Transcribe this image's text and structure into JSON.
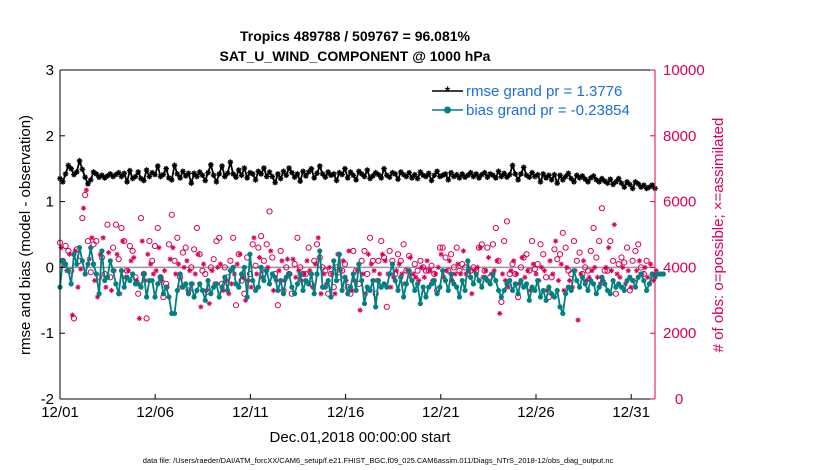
{
  "chart_data": {
    "type": "line",
    "title": "Tropics 489788 / 509767 = 96.081%",
    "subtitle": "SAT_U_WIND_COMPONENT @ 1000 hPa",
    "xlabel": "Dec.01,2018 00:00:00 start",
    "ylabel": "rmse and bias (model - observation)",
    "y2label": "# of obs: o=possible; ×=assimilated",
    "footer": "data file: /Users/raeder/DAI/ATM_forcXX/CAM6_setup/f.e21.FHIST_BGC.f09_025.CAM6assim.011/Diags_NTrS_2018-12/obs_diag_output.nc",
    "x_tick_labels": [
      "12/01",
      "12/06",
      "12/11",
      "12/16",
      "12/21",
      "12/26",
      "12/31"
    ],
    "x_tick_days": [
      0,
      5,
      10,
      15,
      20,
      25,
      30
    ],
    "xlim": [
      0,
      31.25
    ],
    "ylim": [
      -2,
      3
    ],
    "y_ticks": [
      -2,
      -1,
      0,
      1,
      2,
      3
    ],
    "y2lim": [
      0,
      10000
    ],
    "y2_ticks": [
      0,
      2000,
      4000,
      6000,
      8000,
      10000
    ],
    "legend_position": "top-right",
    "colors": {
      "rmse": "#000000",
      "bias": "#008080",
      "obs": "#d8005a",
      "zero_line": "#999999",
      "legend_text": "#1a6fe0"
    },
    "series": [
      {
        "name": "rmse grand pr = 1.3776",
        "axis": "left",
        "marker": "star",
        "values": [
          1.35,
          1.3,
          1.42,
          1.55,
          1.5,
          1.41,
          1.45,
          1.62,
          1.49,
          1.37,
          1.27,
          1.33,
          1.45,
          1.42,
          1.37,
          1.4,
          1.36,
          1.39,
          1.42,
          1.38,
          1.41,
          1.44,
          1.38,
          1.43,
          1.3,
          1.47,
          1.35,
          1.38,
          1.45,
          1.35,
          1.32,
          1.48,
          1.38,
          1.44,
          1.41,
          1.54,
          1.38,
          1.41,
          1.5,
          1.36,
          1.33,
          1.55,
          1.42,
          1.36,
          1.46,
          1.39,
          1.43,
          1.28,
          1.43,
          1.38,
          1.45,
          1.4,
          1.32,
          1.44,
          1.56,
          1.4,
          1.3,
          1.42,
          1.54,
          1.38,
          1.43,
          1.6,
          1.42,
          1.37,
          1.48,
          1.4,
          1.51,
          1.36,
          1.44,
          1.42,
          1.33,
          1.46,
          1.42,
          1.51,
          1.38,
          1.45,
          1.38,
          1.29,
          1.42,
          1.35,
          1.46,
          1.4,
          1.51,
          1.44,
          1.37,
          1.42,
          1.31,
          1.46,
          1.39,
          1.45,
          1.5,
          1.36,
          1.43,
          1.54,
          1.42,
          1.37,
          1.45,
          1.4,
          1.42,
          1.32,
          1.44,
          1.41,
          1.5,
          1.36,
          1.45,
          1.4,
          1.33,
          1.46,
          1.42,
          1.38,
          1.48,
          1.35,
          1.39,
          1.44,
          1.41,
          1.36,
          1.5,
          1.4,
          1.37,
          1.44,
          1.42,
          1.34,
          1.45,
          1.41,
          1.38,
          1.44,
          1.36,
          1.41,
          1.35,
          1.45,
          1.4,
          1.38,
          1.43,
          1.32,
          1.4,
          1.46,
          1.38,
          1.4,
          1.42,
          1.33,
          1.44,
          1.38,
          1.41,
          1.36,
          1.42,
          1.37,
          1.4,
          1.44,
          1.38,
          1.42,
          1.36,
          1.41,
          1.44,
          1.37,
          1.42,
          1.4,
          1.36,
          1.46,
          1.38,
          1.43,
          1.37,
          1.41,
          1.55,
          1.42,
          1.33,
          1.42,
          1.52,
          1.4,
          1.37,
          1.44,
          1.38,
          1.41,
          1.3,
          1.42,
          1.36,
          1.4,
          1.33,
          1.41,
          1.28,
          1.4,
          1.33,
          1.38,
          1.43,
          1.35,
          1.3,
          1.4,
          1.36,
          1.39,
          1.34,
          1.3,
          1.36,
          1.39,
          1.33,
          1.3,
          1.35,
          1.31,
          1.28,
          1.34,
          1.26,
          1.3,
          1.35,
          1.28,
          1.22,
          1.3,
          1.26,
          1.2,
          1.3,
          1.27,
          1.22,
          1.25,
          1.2,
          1.22,
          1.25,
          1.2
        ]
      },
      {
        "name": "bias grand pr = -0.23854",
        "axis": "left",
        "marker": "dot",
        "values": [
          -0.3,
          0.1,
          0.05,
          -0.05,
          -0.25,
          0.2,
          0.05,
          0.3,
          0.1,
          -0.1,
          0.05,
          0.3,
          0.05,
          -0.1,
          -0.4,
          0.25,
          -0.2,
          -0.15,
          0.1,
          -0.05,
          -0.25,
          -0.4,
          -0.05,
          -0.3,
          -0.15,
          -0.2,
          -0.1,
          -0.25,
          -0.25,
          -0.3,
          -0.1,
          -0.45,
          -0.2,
          -0.2,
          -0.45,
          -0.25,
          -0.15,
          -0.4,
          -0.3,
          -0.45,
          -0.7,
          -0.7,
          -0.35,
          -0.1,
          -0.3,
          -0.25,
          -0.4,
          -0.25,
          -0.45,
          -0.35,
          -0.25,
          -0.35,
          -0.5,
          -0.2,
          -0.4,
          -0.3,
          -0.25,
          -0.45,
          -0.3,
          -0.15,
          -0.35,
          -0.05,
          0.0,
          -0.25,
          -0.3,
          -0.1,
          0.0,
          -0.45,
          0.2,
          -0.2,
          -0.35,
          -0.3,
          0.0,
          -0.2,
          -0.05,
          -0.25,
          -0.1,
          -0.15,
          -0.35,
          -0.2,
          -0.4,
          -0.15,
          -0.1,
          -0.3,
          -0.4,
          -0.25,
          -0.1,
          -0.35,
          -0.2,
          -0.25,
          -0.1,
          -0.4,
          -0.1,
          0.25,
          -0.3,
          -0.3,
          -0.2,
          -0.45,
          0.1,
          -0.2,
          0.2,
          -0.35,
          -0.15,
          -0.4,
          -0.3,
          -0.1,
          -0.35,
          0.05,
          -0.2,
          -0.55,
          -0.3,
          -0.35,
          -0.2,
          -0.6,
          -0.2,
          -0.3,
          -0.25,
          -0.3,
          -0.1,
          0.05,
          -0.2,
          -0.35,
          -0.15,
          -0.45,
          -0.25,
          -0.05,
          -0.2,
          -0.35,
          -0.25,
          -0.55,
          -0.3,
          -0.45,
          -0.3,
          -0.25,
          -0.2,
          -0.4,
          -0.3,
          -0.05,
          -0.2,
          -0.35,
          -0.1,
          -0.25,
          -0.3,
          -0.45,
          -0.2,
          -0.35,
          0.1,
          -0.15,
          -0.25,
          -0.1,
          -0.2,
          -0.3,
          -0.15,
          -0.2,
          -0.25,
          -0.1,
          -0.2,
          -0.35,
          -0.45,
          -0.35,
          -0.25,
          -0.2,
          -0.35,
          -0.25,
          -0.4,
          -0.2,
          -0.3,
          -0.25,
          -0.5,
          -0.3,
          -0.35,
          -0.2,
          -0.45,
          -0.35,
          -0.5,
          -0.3,
          -0.4,
          -0.45,
          -0.35,
          -0.6,
          -0.7,
          -0.4,
          -0.3,
          -0.35,
          -0.05,
          -0.2,
          -0.3,
          -0.15,
          -0.25,
          -0.35,
          -0.2,
          -0.25,
          -0.4,
          -0.3,
          -0.15,
          -0.25,
          -0.35,
          -0.4,
          -0.2,
          -0.3,
          -0.25,
          -0.3,
          -0.35,
          -0.2,
          -0.15,
          -0.2,
          -0.3,
          -0.15,
          -0.1,
          -0.2,
          -0.35,
          -0.25,
          -0.1,
          -0.15,
          -0.1,
          -0.1,
          -0.1
        ]
      },
      {
        "name": "possible",
        "axis": "right",
        "marker": "circle",
        "values": [
          4750,
          4200,
          4650,
          4500,
          3900,
          2450,
          4550,
          4200,
          5500,
          6200,
          4800,
          3850,
          4700,
          4800,
          3700,
          4300,
          3800,
          5300,
          3700,
          4600,
          5300,
          4250,
          5200,
          4800,
          3900,
          4650,
          4500,
          3700,
          3200,
          5500,
          3800,
          2450,
          4800,
          4200,
          4650,
          5200,
          3700,
          3100,
          3500,
          4700,
          5600,
          4200,
          4900,
          3700,
          4450,
          4600,
          3300,
          4000,
          4550,
          5200,
          4400,
          3900,
          3800,
          3250,
          4000,
          4250,
          4800,
          4900,
          3500,
          4000,
          3700,
          4200,
          4900,
          2850,
          4400,
          3600,
          3200,
          4300,
          3800,
          4700,
          4050,
          4600,
          4950,
          4200,
          4700,
          5700,
          4300,
          3800,
          2850,
          4500,
          3300,
          4000,
          3800,
          3200,
          4100,
          4900,
          4000,
          3800,
          3800,
          4600,
          3500,
          4200,
          4700,
          4300,
          4000,
          3900,
          3200,
          3800,
          3400,
          4000,
          3700,
          3900,
          4100,
          3400,
          3200,
          4500,
          3900,
          3500,
          4200,
          4500,
          3800,
          4900,
          4200,
          3200,
          4200,
          4800,
          4300,
          2800,
          4500,
          4200,
          3800,
          4400,
          4200,
          4700,
          3900,
          4350,
          3700,
          4100,
          3900,
          4200,
          4000,
          3900,
          3900,
          4050,
          3800,
          3300,
          4600,
          4600,
          4300,
          3900,
          4400,
          4000,
          4600,
          3900,
          4100,
          4000,
          3800,
          3900,
          4000,
          3900,
          4600,
          4700,
          3900,
          4600,
          3700,
          4700,
          5200,
          4200,
          2950,
          4800,
          5400,
          3800,
          4100,
          3800,
          3100,
          4000,
          4300,
          4400,
          3900,
          4800,
          3950,
          4100,
          4700,
          4400,
          3700,
          3100,
          3700,
          4550,
          4250,
          4400,
          5050,
          4600,
          3900,
          3800,
          4800,
          4200,
          4450,
          3800,
          4000,
          3900,
          4500,
          5200,
          4300,
          4800,
          5800,
          3900,
          3900,
          4800,
          4200,
          3200,
          4100,
          4300,
          4150,
          4600,
          3300,
          4200,
          4500,
          4700,
          4000,
          3800,
          4200
        ]
      },
      {
        "name": "assimilated",
        "axis": "right",
        "marker": "asterisk",
        "values": [
          4600,
          4100,
          3900,
          4400,
          2550,
          4500,
          3400,
          3950,
          5800,
          6350,
          4250,
          4900,
          3600,
          3100,
          4400,
          4900,
          3400,
          4450,
          3300,
          3900,
          4400,
          3200,
          4800,
          3700,
          3900,
          4200,
          4300,
          3600,
          2450,
          4800,
          3600,
          4400,
          4100,
          3800,
          3900,
          4600,
          3600,
          3900,
          3400,
          4250,
          4600,
          3800,
          4100,
          3400,
          4000,
          4200,
          3900,
          3500,
          3800,
          4400,
          2800,
          4100,
          3300,
          2900,
          3900,
          3500,
          4000,
          4100,
          3300,
          3600,
          3200,
          3500,
          3800,
          4100,
          4400,
          3700,
          3000,
          3600,
          3400,
          4900,
          3800,
          4300,
          3700,
          3900,
          4000,
          4500,
          3300,
          3600,
          3900,
          4200,
          3600,
          4250,
          3800,
          4250,
          3700,
          3900,
          3600,
          3800,
          4200,
          3900,
          3400,
          4100,
          4900,
          3200,
          3800,
          3500,
          4000,
          3800,
          3200,
          4400,
          3900,
          4200,
          3600,
          4500,
          3300,
          3600,
          3900,
          2700,
          3800,
          3200,
          4400,
          4100,
          3900,
          3600,
          3800,
          4400,
          4200,
          3800,
          3400,
          3700,
          3900,
          4100,
          3800,
          3500,
          3900,
          4300,
          3800,
          3700,
          3600,
          4000,
          3700,
          4200,
          3900,
          3600,
          3800,
          4000,
          4400,
          3700,
          3900,
          4200,
          3600,
          3800,
          4100,
          3800,
          4500,
          3800,
          3900,
          3200,
          3900,
          4000,
          4600,
          3700,
          3900,
          4300,
          3800,
          3900,
          4200,
          2600,
          3800,
          3600,
          3400,
          3900,
          4200,
          3800,
          3500,
          4300,
          3700,
          3900,
          3300,
          4100,
          3800,
          3600,
          4000,
          3900,
          3300,
          4200,
          3800,
          4800,
          3600,
          4100,
          3300,
          4000,
          3600,
          3400,
          3900,
          2400,
          3800,
          4200,
          3600,
          3700,
          3900,
          4000,
          3700,
          3500,
          3600,
          4000,
          4600,
          3900,
          5300,
          3800,
          3700,
          4000,
          3500,
          3900,
          3400,
          3600,
          3900,
          4200,
          3800,
          4000,
          3700,
          4100,
          3600,
          3900
        ]
      }
    ]
  }
}
